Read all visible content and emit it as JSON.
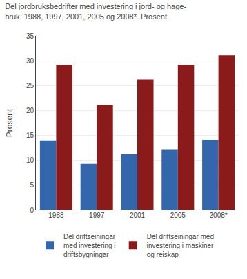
{
  "chart_data": {
    "type": "bar",
    "title": "Del jordbruksbedrifter med investering i jord- og hage-\nbruk. 1988, 1997, 2001, 2005 og 2008*. Prosent",
    "ylabel": "Prosent",
    "categories": [
      "1988",
      "1997",
      "2001",
      "2005",
      "2008*"
    ],
    "series": [
      {
        "name": "Del driftseiningar\nmed investering i\ndriftsbygningar",
        "color": "#3366aa",
        "values": [
          14.0,
          9.3,
          11.2,
          12.1,
          14.1
        ]
      },
      {
        "name": "Del driftseiningar med\ninvestering i maskiner\nog reiskap",
        "color": "#8b1a1a",
        "values": [
          29.2,
          21.1,
          26.2,
          29.2,
          31.1
        ]
      }
    ],
    "ylim": [
      0,
      35
    ],
    "yticks": [
      0,
      5,
      10,
      15,
      20,
      25,
      30,
      35
    ],
    "grid": true,
    "legend": "bottom"
  }
}
